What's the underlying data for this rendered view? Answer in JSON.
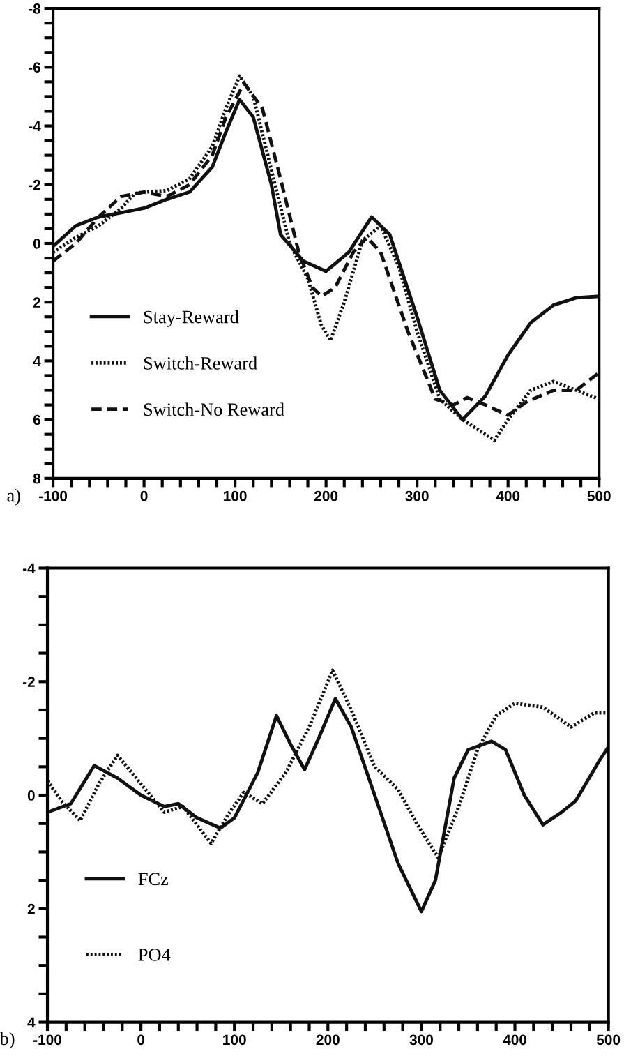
{
  "chart_data": [
    {
      "type": "line",
      "annotations": [
        "a)"
      ],
      "legend": "left",
      "grid": false,
      "xlim": [
        -100,
        500
      ],
      "ylim": [
        8,
        -8
      ],
      "xticks": [
        -100,
        {
          "value": -80,
          "label": null
        },
        {
          "value": -60,
          "label": null
        },
        {
          "value": -40,
          "label": null
        },
        {
          "value": -20,
          "label": null
        },
        0,
        {
          "value": 20,
          "label": null
        },
        {
          "value": 40,
          "label": null
        },
        {
          "value": 60,
          "label": null
        },
        {
          "value": 80,
          "label": null
        },
        100,
        {
          "value": 120,
          "label": null
        },
        {
          "value": 140,
          "label": null
        },
        {
          "value": 160,
          "label": null
        },
        {
          "value": 180,
          "label": null
        },
        200,
        {
          "value": 220,
          "label": null
        },
        {
          "value": 240,
          "label": null
        },
        {
          "value": 260,
          "label": null
        },
        {
          "value": 280,
          "label": null
        },
        300,
        {
          "value": 320,
          "label": null
        },
        {
          "value": 340,
          "label": null
        },
        {
          "value": 360,
          "label": null
        },
        {
          "value": 380,
          "label": null
        },
        400,
        {
          "value": 420,
          "label": null
        },
        {
          "value": 440,
          "label": null
        },
        {
          "value": 460,
          "label": null
        },
        {
          "value": 480,
          "label": null
        },
        500
      ],
      "yticks": [
        {
          "value": -8,
          "label": "-8"
        },
        {
          "value": -7.5,
          "label": null
        },
        {
          "value": -7,
          "label": null
        },
        {
          "value": -6.5,
          "label": null
        },
        {
          "value": -6,
          "label": "-6"
        },
        {
          "value": -5.5,
          "label": null
        },
        {
          "value": -5,
          "label": null
        },
        {
          "value": -4.5,
          "label": null
        },
        {
          "value": -4,
          "label": "-4"
        },
        {
          "value": -3.5,
          "label": null
        },
        {
          "value": -3,
          "label": null
        },
        {
          "value": -2.5,
          "label": null
        },
        {
          "value": -2,
          "label": "-2"
        },
        {
          "value": -1.5,
          "label": null
        },
        {
          "value": -1,
          "label": null
        },
        {
          "value": -0.5,
          "label": null
        },
        0,
        {
          "value": 0.5,
          "label": null
        },
        {
          "value": 1,
          "label": null
        },
        {
          "value": 1.5,
          "label": null
        },
        2,
        {
          "value": 2.5,
          "label": null
        },
        {
          "value": 3,
          "label": null
        },
        {
          "value": 3.5,
          "label": null
        },
        4,
        {
          "value": 4.5,
          "label": null
        },
        {
          "value": 5,
          "label": null
        },
        {
          "value": 5.5,
          "label": null
        },
        6,
        {
          "value": 6.5,
          "label": null
        },
        {
          "value": 7,
          "label": null
        },
        {
          "value": 7.5,
          "label": null
        },
        8
      ],
      "series": [
        {
          "name": "Stay-Reward",
          "color": "#111111",
          "line_style": "solid",
          "x": [
            -100,
            -75,
            -50,
            -25,
            0,
            25,
            50,
            75,
            90,
            105,
            120,
            140,
            150,
            175,
            200,
            225,
            250,
            270,
            300,
            325,
            350,
            375,
            400,
            425,
            450,
            475,
            500
          ],
          "values": [
            0.1,
            -0.6,
            -0.9,
            -1.05,
            -1.2,
            -1.5,
            -1.75,
            -2.6,
            -3.8,
            -4.9,
            -4.3,
            -2.0,
            -0.3,
            0.6,
            0.95,
            0.3,
            -0.9,
            -0.3,
            2.5,
            5.0,
            6.0,
            5.2,
            3.8,
            2.7,
            2.1,
            1.85,
            1.8
          ]
        },
        {
          "name": "Switch-Reward",
          "color": "#111111",
          "line_style": "dotted",
          "x": [
            -100,
            -75,
            -50,
            -25,
            -10,
            0,
            25,
            50,
            75,
            90,
            105,
            120,
            140,
            160,
            180,
            195,
            205,
            220,
            240,
            260,
            280,
            300,
            325,
            350,
            375,
            385,
            400,
            425,
            450,
            475,
            500
          ],
          "values": [
            0.3,
            -0.2,
            -0.6,
            -1.2,
            -1.7,
            -1.75,
            -1.8,
            -2.2,
            -3.3,
            -4.6,
            -5.7,
            -5.0,
            -2.5,
            0.0,
            1.2,
            2.8,
            3.3,
            2.0,
            -0.1,
            -0.6,
            0.8,
            3.0,
            5.3,
            6.0,
            6.5,
            6.7,
            6.0,
            5.0,
            4.7,
            5.0,
            5.3
          ]
        },
        {
          "name": "Switch-No Reward",
          "color": "#111111",
          "line_style": "dashed",
          "x": [
            -100,
            -75,
            -50,
            -25,
            0,
            25,
            50,
            75,
            90,
            110,
            130,
            150,
            170,
            185,
            195,
            210,
            230,
            245,
            260,
            290,
            320,
            340,
            355,
            375,
            400,
            420,
            450,
            475,
            500
          ],
          "values": [
            0.6,
            0.0,
            -0.9,
            -1.6,
            -1.75,
            -1.6,
            -2.0,
            -3.0,
            -4.3,
            -5.45,
            -4.6,
            -2.2,
            0.3,
            1.5,
            1.8,
            1.5,
            0.3,
            -0.2,
            0.3,
            3.0,
            5.3,
            5.5,
            5.25,
            5.5,
            5.85,
            5.4,
            5.0,
            5.0,
            4.4
          ]
        }
      ]
    },
    {
      "type": "line",
      "annotations": [
        "b)"
      ],
      "legend": "left",
      "grid": false,
      "xlim": [
        -100,
        500
      ],
      "ylim": [
        4,
        -4
      ],
      "xticks": [
        -100,
        {
          "value": -80,
          "label": null
        },
        {
          "value": -60,
          "label": null
        },
        {
          "value": -40,
          "label": null
        },
        {
          "value": -20,
          "label": null
        },
        0,
        {
          "value": 20,
          "label": null
        },
        {
          "value": 40,
          "label": null
        },
        {
          "value": 60,
          "label": null
        },
        {
          "value": 80,
          "label": null
        },
        100,
        {
          "value": 120,
          "label": null
        },
        {
          "value": 140,
          "label": null
        },
        {
          "value": 160,
          "label": null
        },
        {
          "value": 180,
          "label": null
        },
        200,
        {
          "value": 220,
          "label": null
        },
        {
          "value": 240,
          "label": null
        },
        {
          "value": 260,
          "label": null
        },
        {
          "value": 280,
          "label": null
        },
        300,
        {
          "value": 320,
          "label": null
        },
        {
          "value": 340,
          "label": null
        },
        {
          "value": 360,
          "label": null
        },
        {
          "value": 380,
          "label": null
        },
        400,
        {
          "value": 420,
          "label": null
        },
        {
          "value": 440,
          "label": null
        },
        {
          "value": 460,
          "label": null
        },
        {
          "value": 480,
          "label": null
        },
        500
      ],
      "yticks": [
        {
          "value": -4,
          "label": "-4"
        },
        {
          "value": -3.5,
          "label": null
        },
        {
          "value": -3,
          "label": null
        },
        {
          "value": -2.5,
          "label": null
        },
        {
          "value": -2,
          "label": "-2"
        },
        {
          "value": -1.5,
          "label": null
        },
        {
          "value": -1,
          "label": null
        },
        {
          "value": -0.5,
          "label": null
        },
        0,
        {
          "value": 0.5,
          "label": null
        },
        {
          "value": 1,
          "label": null
        },
        {
          "value": 1.5,
          "label": null
        },
        2,
        {
          "value": 2.5,
          "label": null
        },
        {
          "value": 3,
          "label": null
        },
        {
          "value": 3.5,
          "label": null
        },
        4
      ],
      "series": [
        {
          "name": "FCz",
          "color": "#111111",
          "line_style": "solid",
          "x": [
            -100,
            -75,
            -50,
            -25,
            0,
            25,
            40,
            60,
            85,
            100,
            125,
            145,
            160,
            175,
            190,
            208,
            225,
            250,
            275,
            300,
            315,
            335,
            350,
            375,
            390,
            410,
            430,
            450,
            465,
            490,
            500
          ],
          "values": [
            0.3,
            0.15,
            -0.52,
            -0.3,
            0.0,
            0.2,
            0.15,
            0.4,
            0.58,
            0.4,
            -0.4,
            -1.4,
            -0.9,
            -0.45,
            -1.0,
            -1.7,
            -1.2,
            0.0,
            1.2,
            2.05,
            1.5,
            -0.3,
            -0.8,
            -0.95,
            -0.8,
            0.0,
            0.52,
            0.3,
            0.1,
            -0.6,
            -0.85
          ]
        },
        {
          "name": "PO4",
          "color": "#111111",
          "line_style": "dotted",
          "x": [
            -100,
            -85,
            -65,
            -45,
            -25,
            -5,
            15,
            25,
            45,
            75,
            95,
            110,
            130,
            155,
            180,
            205,
            225,
            250,
            275,
            295,
            318,
            340,
            360,
            380,
            400,
            430,
            460,
            485,
            500
          ],
          "values": [
            -0.25,
            0.1,
            0.45,
            -0.2,
            -0.7,
            -0.3,
            0.1,
            0.3,
            0.2,
            0.85,
            0.3,
            -0.05,
            0.15,
            -0.4,
            -1.2,
            -2.2,
            -1.5,
            -0.5,
            -0.1,
            0.5,
            1.1,
            0.2,
            -0.8,
            -1.4,
            -1.62,
            -1.55,
            -1.2,
            -1.45,
            -1.45
          ]
        }
      ]
    }
  ]
}
